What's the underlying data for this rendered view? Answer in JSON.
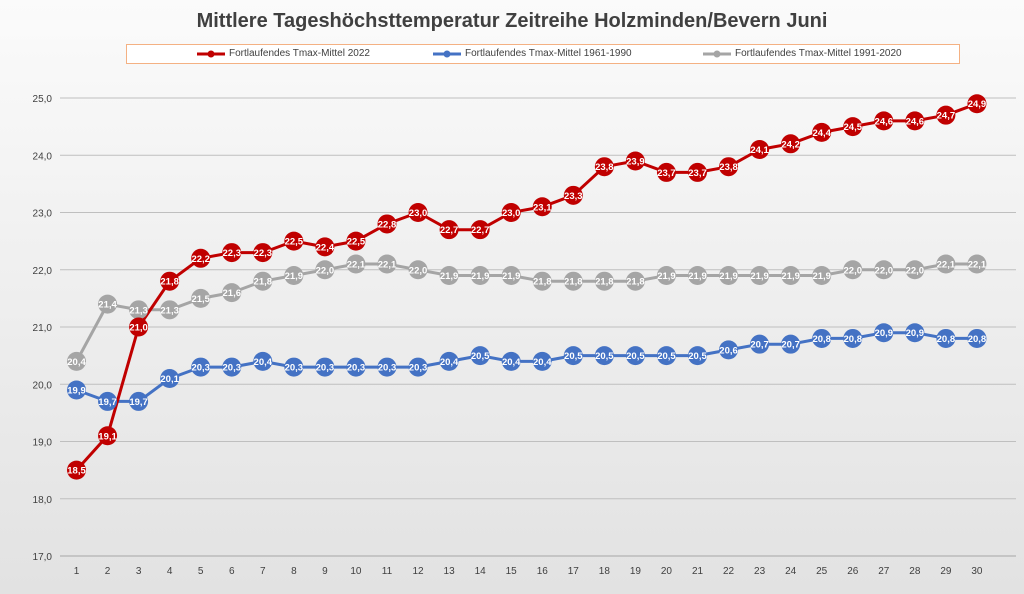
{
  "chart_data": {
    "type": "line",
    "title": "Mittlere Tageshöchsttemperatur Zeitreihe Holzminden/Bevern Juni",
    "xlabel": "",
    "ylabel": "",
    "x": [
      1,
      2,
      3,
      4,
      5,
      6,
      7,
      8,
      9,
      10,
      11,
      12,
      13,
      14,
      15,
      16,
      17,
      18,
      19,
      20,
      21,
      22,
      23,
      24,
      25,
      26,
      27,
      28,
      29,
      30
    ],
    "x_tick_labels": [
      "1",
      "2",
      "3",
      "4",
      "5",
      "6",
      "7",
      "8",
      "9",
      "10",
      "11",
      "12",
      "13",
      "14",
      "15",
      "16",
      "17",
      "18",
      "19",
      "20",
      "21",
      "22",
      "23",
      "24",
      "25",
      "26",
      "27",
      "28",
      "29",
      "30"
    ],
    "ylim": [
      17.0,
      25.0
    ],
    "y_ticks": [
      17.0,
      18.0,
      19.0,
      20.0,
      21.0,
      22.0,
      23.0,
      24.0,
      25.0
    ],
    "y_tick_labels": [
      "17,0",
      "18,0",
      "19,0",
      "20,0",
      "21,0",
      "22,0",
      "23,0",
      "24,0",
      "25,0"
    ],
    "grid": "horizontal",
    "legend_position": "top",
    "series": [
      {
        "key": "2022",
        "name": "Fortlaufendes Tmax-Mittel 2022",
        "color": "#c00000",
        "values": [
          18.5,
          19.1,
          21.0,
          21.8,
          22.2,
          22.3,
          22.3,
          22.5,
          22.4,
          22.5,
          22.8,
          23.0,
          22.7,
          22.7,
          23.0,
          23.1,
          23.3,
          23.8,
          23.9,
          23.7,
          23.7,
          23.8,
          24.1,
          24.2,
          24.4,
          24.5,
          24.6,
          24.6,
          24.7,
          24.9
        ],
        "labels": [
          "18,5",
          "19,1",
          "21,0",
          "21,8",
          "22,2",
          "22,3",
          "22,3",
          "22,5",
          "22,4",
          "22,5",
          "22,8",
          "23,0",
          "22,7",
          "22,7",
          "23,0",
          "23,1",
          "23,3",
          "23,8",
          "23,9",
          "23,7",
          "23,7",
          "23,8",
          "24,1",
          "24,2",
          "24,4",
          "24,5",
          "24,6",
          "24,6",
          "24,7",
          "24,9"
        ]
      },
      {
        "key": "1961-1990",
        "name": "Fortlaufendes Tmax-Mittel 1961-1990",
        "color": "#4472c4",
        "values": [
          19.9,
          19.7,
          19.7,
          20.1,
          20.3,
          20.3,
          20.4,
          20.3,
          20.3,
          20.3,
          20.3,
          20.3,
          20.4,
          20.5,
          20.4,
          20.4,
          20.5,
          20.5,
          20.5,
          20.5,
          20.5,
          20.6,
          20.7,
          20.7,
          20.8,
          20.8,
          20.9,
          20.9,
          20.8,
          20.8
        ],
        "labels": [
          "19,9",
          "19,7",
          "19,7",
          "20,1",
          "20,3",
          "20,3",
          "20,4",
          "20,3",
          "20,3",
          "20,3",
          "20,3",
          "20,3",
          "20,4",
          "20,5",
          "20,4",
          "20,4",
          "20,5",
          "20,5",
          "20,5",
          "20,5",
          "20,5",
          "20,6",
          "20,7",
          "20,7",
          "20,8",
          "20,8",
          "20,9",
          "20,9",
          "20,8",
          "20,8"
        ]
      },
      {
        "key": "1991-2020",
        "name": "Fortlaufendes Tmax-Mittel 1991-2020",
        "color": "#a5a5a5",
        "values": [
          20.4,
          21.4,
          21.3,
          21.3,
          21.5,
          21.6,
          21.8,
          21.9,
          22.0,
          22.1,
          22.1,
          22.0,
          21.9,
          21.9,
          21.9,
          21.8,
          21.8,
          21.8,
          21.8,
          21.9,
          21.9,
          21.9,
          21.9,
          21.9,
          21.9,
          22.0,
          22.0,
          22.0,
          22.1,
          22.1
        ],
        "labels": [
          "20,4",
          "21,4",
          "21,3",
          "21,3",
          "21,5",
          "21,6",
          "21,8",
          "21,9",
          "22,0",
          "22,1",
          "22,1",
          "22,0",
          "21,9",
          "21,9",
          "21,9",
          "21,8",
          "21,8",
          "21,8",
          "21,8",
          "21,9",
          "21,9",
          "21,9",
          "21,9",
          "21,9",
          "21,9",
          "22,0",
          "22,0",
          "22,0",
          "22,1",
          "22,1"
        ]
      }
    ]
  }
}
